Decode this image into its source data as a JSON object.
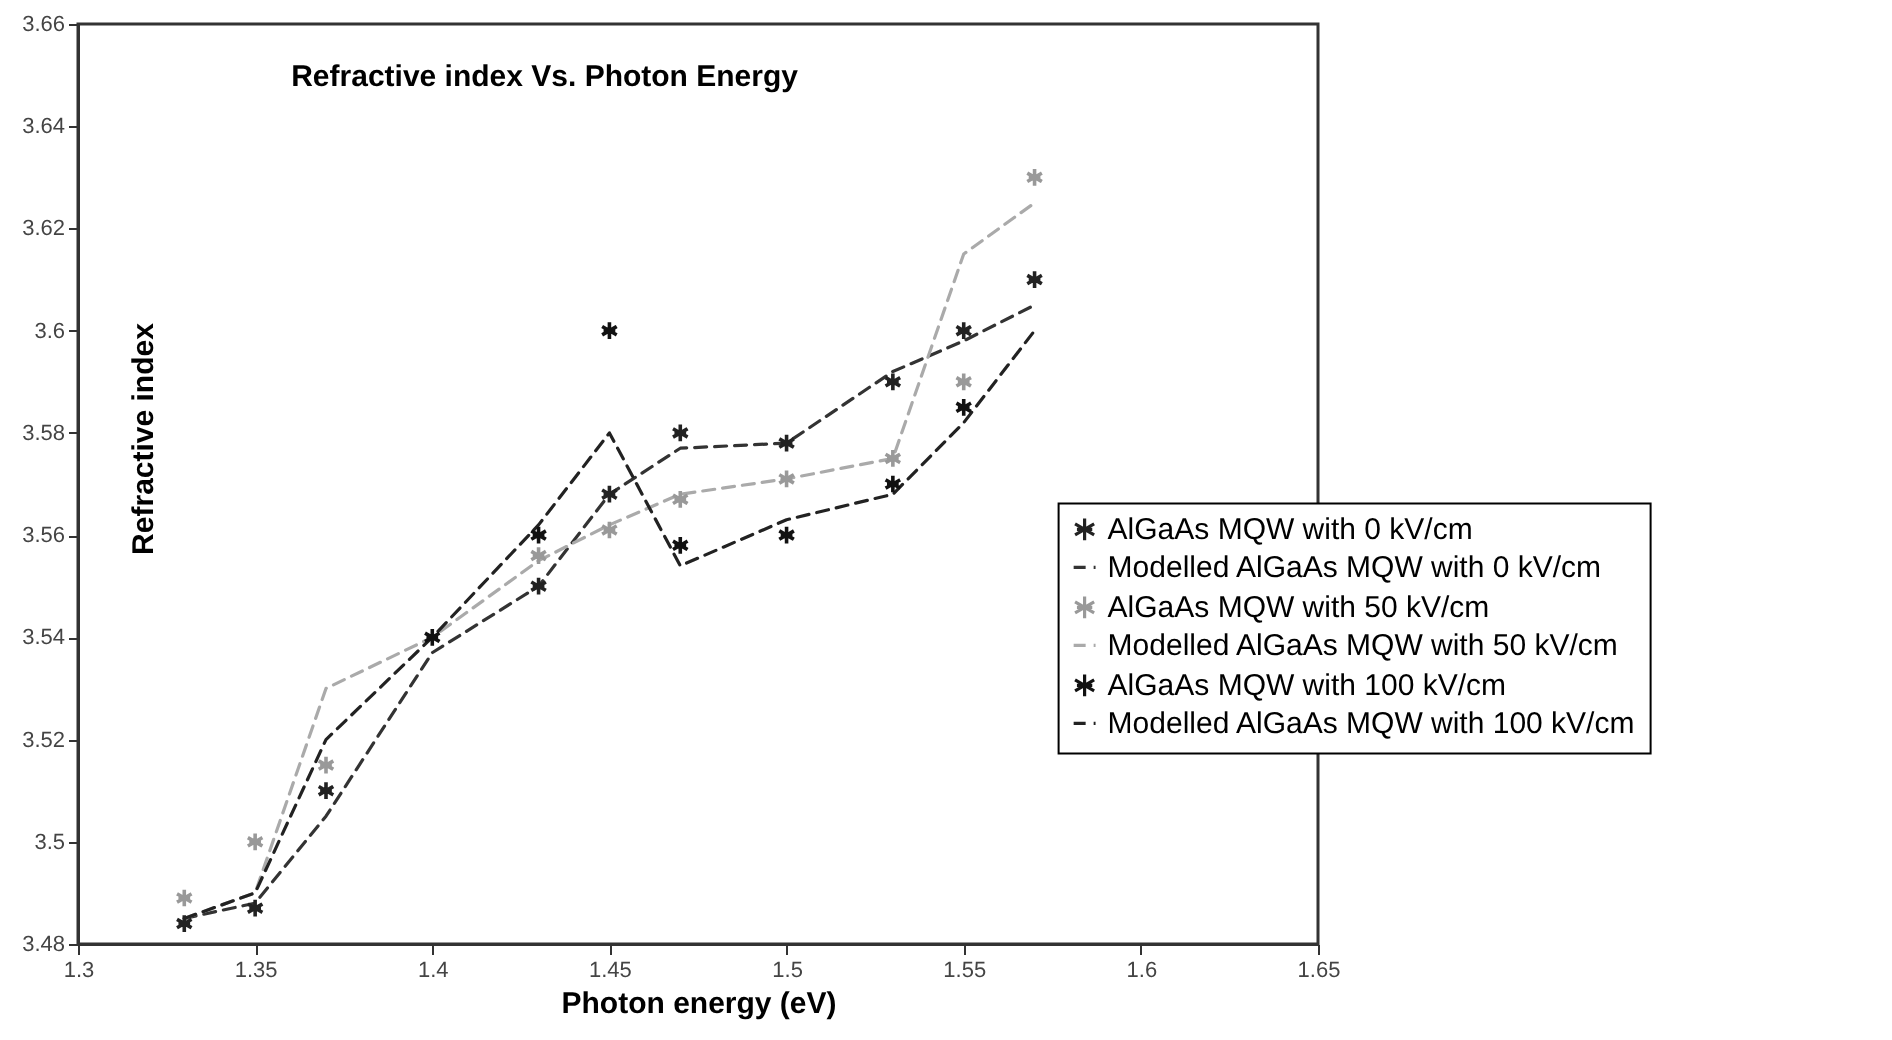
{
  "chart_data": {
    "type": "scatter",
    "title": "Refractive index Vs. Photon Energy",
    "xlabel": "Photon energy (eV)",
    "ylabel": "Refractive index",
    "x": [
      1.33,
      1.35,
      1.37,
      1.4,
      1.43,
      1.45,
      1.47,
      1.5,
      1.53,
      1.55,
      1.57
    ],
    "series": [
      {
        "name": "AlGaAs MQW with 0 kV/cm",
        "marker": "cross",
        "color": "#222222",
        "values": [
          3.484,
          3.487,
          3.51,
          null,
          3.55,
          3.568,
          3.58,
          3.578,
          3.59,
          3.6,
          3.61
        ]
      },
      {
        "name": "Modelled AlGaAs MQW with 0 kV/cm",
        "type": "line",
        "line_style": "dashed",
        "color": "#333333",
        "values": [
          3.485,
          3.488,
          3.505,
          3.537,
          3.55,
          3.568,
          3.577,
          3.578,
          3.592,
          3.598,
          3.605
        ]
      },
      {
        "name": "AlGaAs MQW with 50 kV/cm",
        "marker": "cross",
        "color": "#999999",
        "values": [
          3.489,
          3.5,
          3.515,
          null,
          3.556,
          3.561,
          3.567,
          3.571,
          3.575,
          3.59,
          3.63
        ]
      },
      {
        "name": "Modelled AlGaAs MQW with 50 kV/cm",
        "type": "line",
        "line_style": "dashed",
        "color": "#aaaaaa",
        "values": [
          3.485,
          3.49,
          3.53,
          3.54,
          3.555,
          3.562,
          3.568,
          3.571,
          3.575,
          3.615,
          3.625
        ]
      },
      {
        "name": "AlGaAs MQW with 100 kV/cm",
        "marker": "cross",
        "color": "#111111",
        "values": [
          null,
          null,
          null,
          3.54,
          3.56,
          3.6,
          3.558,
          3.56,
          3.57,
          3.585,
          null
        ]
      },
      {
        "name": "Modelled AlGaAs MQW with 100 kV/cm",
        "type": "line",
        "line_style": "dashed",
        "color": "#222222",
        "values": [
          3.485,
          3.49,
          3.52,
          3.54,
          3.562,
          3.58,
          3.554,
          3.563,
          3.568,
          3.582,
          3.6
        ]
      }
    ],
    "xlim": [
      1.3,
      1.65
    ],
    "xticks": [
      1.3,
      1.35,
      1.4,
      1.45,
      1.5,
      1.55,
      1.6,
      1.65
    ],
    "ylim": [
      3.48,
      3.66
    ],
    "yticks": [
      3.48,
      3.5,
      3.52,
      3.54,
      3.56,
      3.58,
      3.6,
      3.62,
      3.64,
      3.66
    ],
    "grid": false,
    "legend": "right"
  }
}
